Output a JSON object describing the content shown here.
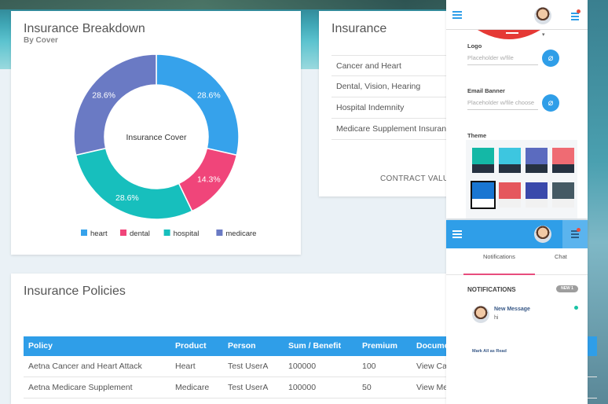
{
  "breakdown": {
    "title": "Insurance Breakdown",
    "subtitle": "By Cover",
    "center_label": "Insurance Cover"
  },
  "chart_data": {
    "type": "pie",
    "categories": [
      "heart",
      "dental",
      "hospital",
      "medicare"
    ],
    "values": [
      28.6,
      14.3,
      28.6,
      28.6
    ],
    "labels": [
      "28.6%",
      "14.3%",
      "28.6%",
      "28.6%"
    ],
    "colors": [
      "#36a2eb",
      "#f0457a",
      "#17bfbd",
      "#6a7ac4"
    ],
    "legend_position": "bottom"
  },
  "insurance": {
    "title": "Insurance",
    "items": [
      "Cancer and Heart",
      "Dental, Vision, Hearing",
      "Hospital Indemnity",
      "Medicare Supplement Insurance"
    ],
    "contract_label": "CONTRACT VALUE"
  },
  "policies": {
    "title": "Insurance Policies",
    "columns": [
      "Policy",
      "Product",
      "Person",
      "Sum / Benefit",
      "Premium",
      "Docume"
    ],
    "rows": [
      [
        "Aetna Cancer and Heart Attack",
        "Heart",
        "Test UserA",
        "100000",
        "100",
        "View Ca"
      ],
      [
        "Aetna Medicare Supplement",
        "Medicare",
        "Test UserA",
        "100000",
        "50",
        "View Me"
      ]
    ]
  },
  "settings": {
    "logo_label": "Logo",
    "logo_placeholder": "Placeholder w/file",
    "email_banner_label": "Email Banner",
    "email_banner_placeholder": "Placeholder w/file choose",
    "theme_label": "Theme",
    "themes": [
      {
        "top": "#14b8a6",
        "bottom": "#263241"
      },
      {
        "top": "#3dc6e0",
        "bottom": "#263241"
      },
      {
        "top": "#5b6bbf",
        "bottom": "#263241"
      },
      {
        "top": "#ef6b73",
        "bottom": "#263241"
      },
      {
        "top": "#1976d2",
        "bottom": "#ffffff"
      },
      {
        "top": "#e5575d",
        "bottom": "#f1f1f1"
      },
      {
        "top": "#3949ab",
        "bottom": "#f1f1f1"
      },
      {
        "top": "#455a64",
        "bottom": "#f1f1f1"
      }
    ]
  },
  "notifications": {
    "tab_notifications": "Notifications",
    "tab_chat": "Chat",
    "heading": "NOTIFICATIONS",
    "badge": "NEW 1",
    "message_title": "New Message",
    "message_body": "hi",
    "mark_all": "Mark All as Read"
  }
}
